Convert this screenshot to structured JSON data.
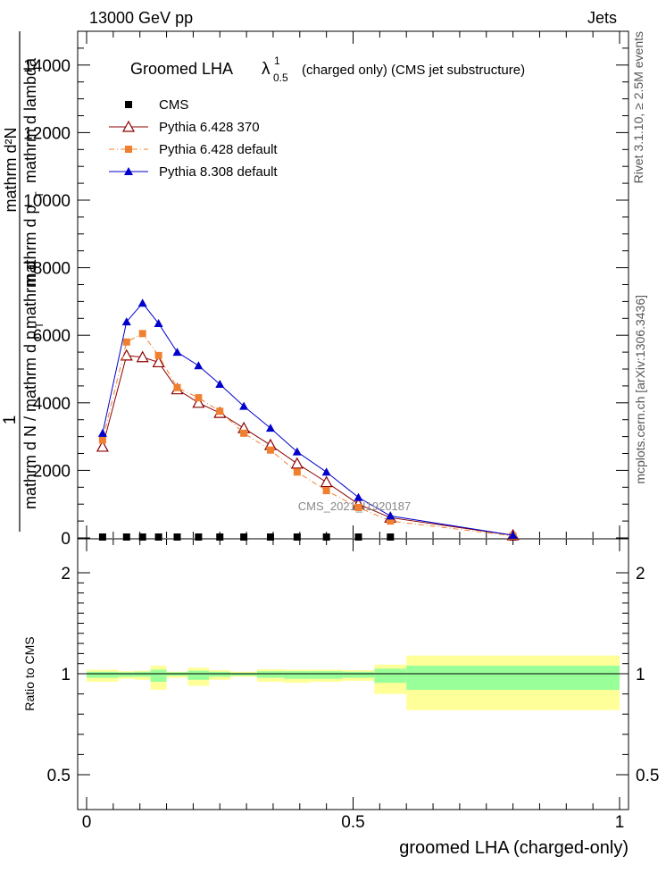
{
  "header": {
    "left": "13000 GeV pp",
    "right": "Jets"
  },
  "side_labels": {
    "rivet": "Rivet 3.1.10, ≥ 2.5M events",
    "mcplots": "mcplots.cern.ch [arXiv:1306.3436]"
  },
  "chart_data": [
    {
      "type": "line",
      "panel": "main",
      "title": "Groomed LHA",
      "title_symbol": "λ",
      "title_sup": "1",
      "title_sub": "0.5",
      "title_suffix": "(charged only) (CMS jet substructure)",
      "watermark": "CMS_2021_I1920187",
      "ylabel_top": "mathrm d²N",
      "ylabel_mid1": "mathrm d p",
      "ylabel_mid1_sub": "T",
      "ylabel_mid2": "mathrm d lambda",
      "ylabel_bottom1": "mathrm d N / mathrm d p",
      "ylabel_bottom1_sub": "T",
      "ylabel_one": "1",
      "ylabel_frac_prefix": "mathrm d",
      "xlim": [
        0,
        1
      ],
      "ylim": [
        0,
        15000
      ],
      "yticks": [
        0,
        2000,
        4000,
        6000,
        8000,
        10000,
        12000,
        14000
      ],
      "ytick_labels": [
        "0",
        "2000",
        "4000",
        "6000",
        "8000",
        "10000",
        "12000",
        "14000"
      ],
      "legend_position": "top-left",
      "series": [
        {
          "name": "CMS",
          "color": "#000000",
          "marker": "square",
          "x": [
            0.03,
            0.075,
            0.105,
            0.135,
            0.17,
            0.21,
            0.25,
            0.295,
            0.345,
            0.395,
            0.45,
            0.51,
            0.57,
            0.8
          ],
          "y": [
            0,
            0,
            0,
            0,
            0,
            0,
            0,
            0,
            0,
            0,
            0,
            0,
            0,
            0
          ]
        },
        {
          "name": "Pythia 6.428 370",
          "color": "#8b0000",
          "marker": "open-triangle",
          "x": [
            0.03,
            0.075,
            0.105,
            0.135,
            0.17,
            0.21,
            0.25,
            0.295,
            0.345,
            0.395,
            0.45,
            0.51,
            0.57,
            0.8
          ],
          "y": [
            2700,
            5400,
            5350,
            5200,
            4400,
            4000,
            3700,
            3250,
            2750,
            2200,
            1650,
            1000,
            600,
            80
          ]
        },
        {
          "name": "Pythia 6.428 default",
          "color": "#f08030",
          "marker": "square",
          "x": [
            0.03,
            0.075,
            0.105,
            0.135,
            0.17,
            0.21,
            0.25,
            0.295,
            0.345,
            0.395,
            0.45,
            0.51,
            0.57,
            0.8
          ],
          "y": [
            2900,
            5800,
            6050,
            5400,
            4450,
            4150,
            3750,
            3100,
            2600,
            1950,
            1400,
            900,
            500,
            60
          ]
        },
        {
          "name": "Pythia 8.308 default",
          "color": "#0000cc",
          "marker": "triangle",
          "x": [
            0.03,
            0.075,
            0.105,
            0.135,
            0.17,
            0.21,
            0.25,
            0.295,
            0.345,
            0.395,
            0.45,
            0.51,
            0.57,
            0.8
          ],
          "y": [
            3100,
            6400,
            6950,
            6350,
            5500,
            5100,
            4550,
            3900,
            3250,
            2550,
            1950,
            1200,
            650,
            80
          ]
        }
      ]
    },
    {
      "type": "area",
      "panel": "ratio",
      "ylabel": "Ratio to CMS",
      "xlabel": "groomed LHA (charged-only)",
      "xlim": [
        0,
        1
      ],
      "ylim": [
        0.35,
        2.35
      ],
      "yticks": [
        0.5,
        1,
        2
      ],
      "ytick_labels": [
        "0.5",
        "1",
        "2"
      ],
      "xticks": [
        0,
        0.5,
        1
      ],
      "xtick_labels": [
        "0",
        "0.5",
        "1"
      ],
      "band_colors": {
        "inner": "#99ff99",
        "outer": "#ffff99"
      },
      "bins": [
        {
          "lo": 0.0,
          "hi": 0.06,
          "inner": [
            0.98,
            1.02
          ],
          "outer": [
            0.96,
            1.04
          ]
        },
        {
          "lo": 0.06,
          "hi": 0.09,
          "inner": [
            0.985,
            1.015
          ],
          "outer": [
            0.975,
            1.025
          ]
        },
        {
          "lo": 0.09,
          "hi": 0.12,
          "inner": [
            0.985,
            1.02
          ],
          "outer": [
            0.97,
            1.03
          ]
        },
        {
          "lo": 0.12,
          "hi": 0.15,
          "inner": [
            0.96,
            1.04
          ],
          "outer": [
            0.92,
            1.08
          ]
        },
        {
          "lo": 0.15,
          "hi": 0.19,
          "inner": [
            0.99,
            1.015
          ],
          "outer": [
            0.98,
            1.02
          ]
        },
        {
          "lo": 0.19,
          "hi": 0.23,
          "inner": [
            0.97,
            1.03
          ],
          "outer": [
            0.94,
            1.06
          ]
        },
        {
          "lo": 0.23,
          "hi": 0.27,
          "inner": [
            0.985,
            1.02
          ],
          "outer": [
            0.97,
            1.035
          ]
        },
        {
          "lo": 0.27,
          "hi": 0.32,
          "inner": [
            0.99,
            1.01
          ],
          "outer": [
            0.985,
            1.02
          ]
        },
        {
          "lo": 0.32,
          "hi": 0.37,
          "inner": [
            0.98,
            1.025
          ],
          "outer": [
            0.96,
            1.045
          ]
        },
        {
          "lo": 0.37,
          "hi": 0.42,
          "inner": [
            0.975,
            1.025
          ],
          "outer": [
            0.955,
            1.04
          ]
        },
        {
          "lo": 0.42,
          "hi": 0.48,
          "inner": [
            0.975,
            1.025
          ],
          "outer": [
            0.96,
            1.04
          ]
        },
        {
          "lo": 0.48,
          "hi": 0.54,
          "inner": [
            0.98,
            1.02
          ],
          "outer": [
            0.965,
            1.035
          ]
        },
        {
          "lo": 0.54,
          "hi": 0.6,
          "inner": [
            0.955,
            1.05
          ],
          "outer": [
            0.9,
            1.09
          ]
        },
        {
          "lo": 0.6,
          "hi": 1.0,
          "inner": [
            0.92,
            1.08
          ],
          "outer": [
            0.82,
            1.18
          ]
        }
      ]
    }
  ]
}
